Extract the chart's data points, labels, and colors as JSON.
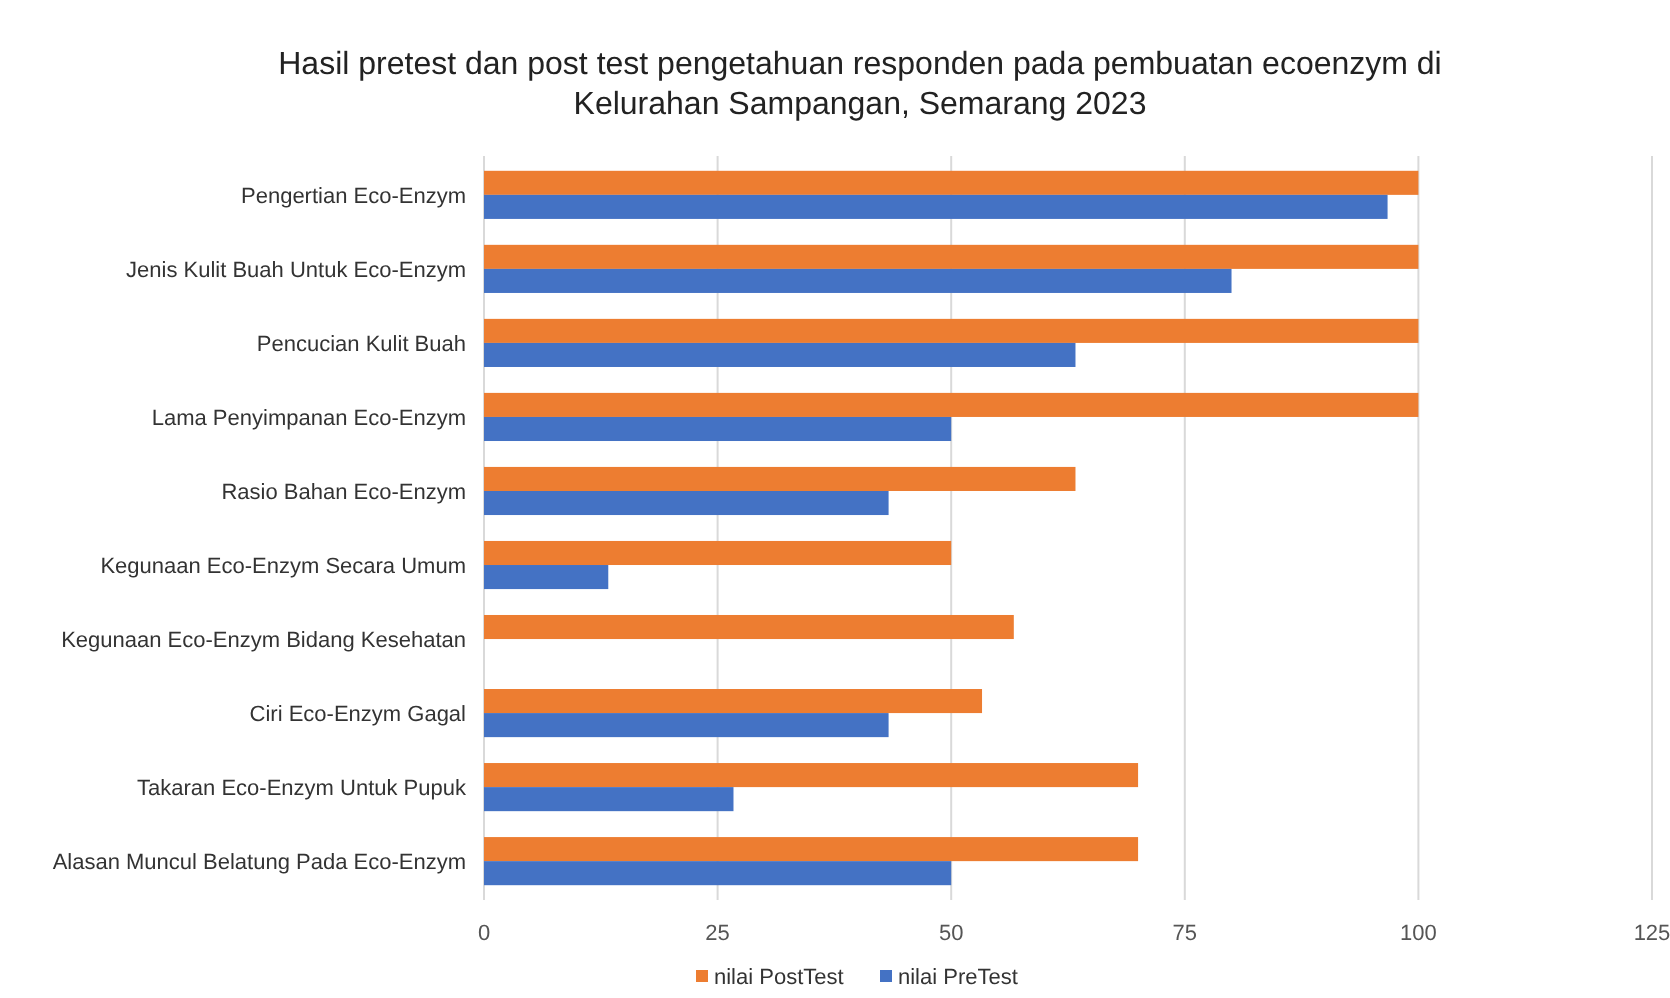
{
  "chart_data": {
    "type": "bar",
    "orientation": "horizontal",
    "title": "Hasil pretest dan post test pengetahuan responden pada pembuatan ecoenzym di Kelurahan Sampangan, Semarang 2023",
    "categories": [
      "Pengertian Eco-Enzym",
      "Jenis Kulit Buah Untuk Eco-Enzym",
      "Pencucian Kulit Buah",
      "Lama Penyimpanan Eco-Enzym",
      "Rasio Bahan Eco-Enzym",
      "Kegunaan Eco-Enzym Secara Umum",
      "Kegunaan Eco-Enzym Bidang Kesehatan",
      "Ciri Eco-Enzym Gagal",
      "Takaran Eco-Enzym Untuk Pupuk",
      "Alasan Muncul Belatung Pada Eco-Enzym"
    ],
    "series": [
      {
        "name": "nilai PostTest",
        "color": "#ed7d31",
        "values": [
          100,
          100,
          100,
          100,
          63.3,
          50,
          56.7,
          53.3,
          70,
          70
        ]
      },
      {
        "name": "nilai PreTest",
        "color": "#4472c4",
        "values": [
          96.7,
          80,
          63.3,
          50,
          43.3,
          13.3,
          0,
          43.3,
          26.7,
          50
        ]
      }
    ],
    "xlim": [
      0,
      125
    ],
    "xticks": [
      0,
      25,
      50,
      75,
      100,
      125
    ],
    "grid": "x",
    "legend": "bottom"
  }
}
